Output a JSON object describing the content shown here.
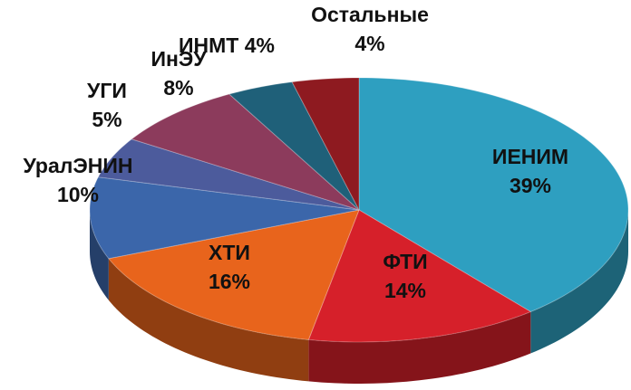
{
  "chart_data": {
    "type": "pie",
    "categories": [
      "ИЕНИМ",
      "ФТИ",
      "ХТИ",
      "УралЭНИН",
      "УГИ",
      "ИнЭУ",
      "ИНМТ",
      "Остальные"
    ],
    "values": [
      39,
      14,
      16,
      10,
      5,
      8,
      4,
      4
    ],
    "value_labels": [
      "39%",
      "14%",
      "16%",
      "10%",
      "5%",
      "8%",
      "4%",
      "4%"
    ],
    "colors": [
      "#2e9fc0",
      "#d6202a",
      "#e8641c",
      "#3b66aa",
      "#4c5b9c",
      "#8c3b5c",
      "#1f6079",
      "#8e1a20"
    ]
  }
}
